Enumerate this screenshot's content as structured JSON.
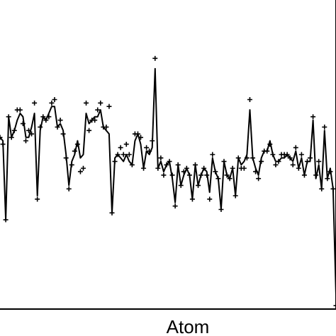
{
  "chart_data": {
    "type": "line",
    "title": "",
    "xlabel": "Atom",
    "ylabel": "",
    "xlim": [
      0,
      117
    ],
    "ylim": [
      -4.7,
      4.3
    ],
    "grid": false,
    "legend": "none",
    "series": [
      {
        "style": "line",
        "color": "#000000",
        "x": [
          0,
          1,
          2,
          3,
          4,
          5,
          6,
          7,
          8,
          9,
          10,
          11,
          12,
          13,
          14,
          15,
          16,
          17,
          18,
          19,
          20,
          21,
          22,
          23,
          24,
          25,
          26,
          27,
          28,
          29,
          30,
          31,
          32,
          33,
          34,
          35,
          36,
          37,
          38,
          39,
          40,
          41,
          42,
          43,
          44,
          45,
          46,
          47,
          48,
          49,
          50,
          51,
          52,
          53,
          54,
          55,
          56,
          57,
          58,
          59,
          60,
          61,
          62,
          63,
          64,
          65,
          66,
          67,
          68,
          69,
          70,
          71,
          72,
          73,
          74,
          75,
          76,
          77,
          78,
          79,
          80,
          81,
          82,
          83,
          84,
          85,
          86,
          87,
          88,
          89,
          90,
          91,
          92,
          93,
          94,
          95,
          96,
          97,
          98,
          99,
          100,
          101,
          102,
          103,
          104,
          105,
          106,
          107,
          108,
          109,
          110,
          111,
          112,
          113,
          114,
          115,
          116,
          117
        ],
        "y": [
          0.3,
          0.2,
          -2.1,
          0.9,
          0.3,
          0.5,
          0.8,
          1.0,
          0.9,
          0.3,
          0.3,
          0.6,
          1.0,
          -1.4,
          0.5,
          0.9,
          0.8,
          1.0,
          1.2,
          1.2,
          0.6,
          0.7,
          0.5,
          -0.2,
          -1.1,
          -0.4,
          -0.2,
          0.2,
          -0.3,
          -0.2,
          1.0,
          0.7,
          0.8,
          0.9,
          0.9,
          1.1,
          0.6,
          0.5,
          0.4,
          -1.9,
          -0.3,
          -0.2,
          -0.3,
          -0.4,
          -0.2,
          -0.4,
          -0.5,
          0.2,
          0.4,
          0.1,
          -0.6,
          -0.1,
          -0.2,
          0.0,
          2.3,
          -0.6,
          -0.4,
          -0.7,
          -0.5,
          -0.4,
          -0.9,
          -1.6,
          -0.5,
          -1.1,
          -0.8,
          -0.6,
          -0.8,
          -1.5,
          -0.5,
          -1.1,
          -0.8,
          -0.6,
          -0.7,
          -1.3,
          -0.3,
          -0.7,
          -0.9,
          -1.8,
          -0.4,
          -0.8,
          -0.9,
          -0.6,
          -1.4,
          -0.3,
          -0.5,
          -0.4,
          -0.2,
          1.1,
          -0.3,
          -0.6,
          -0.8,
          -0.3,
          -0.1,
          -0.1,
          0.2,
          -0.2,
          -0.4,
          -0.4,
          -0.3,
          -0.3,
          -0.2,
          -0.3,
          -0.4,
          -0.1,
          -0.6,
          -0.3,
          -0.8,
          -0.4,
          -0.4,
          0.8,
          -0.9,
          -0.5,
          -1.2,
          0.5,
          -0.9,
          -0.6,
          -1.2,
          -4.3
        ]
      },
      {
        "style": "markers",
        "marker": "+",
        "color": "#000000",
        "x": [
          0,
          1,
          2,
          3,
          4,
          5,
          6,
          7,
          8,
          9,
          10,
          11,
          12,
          13,
          14,
          15,
          16,
          17,
          18,
          19,
          20,
          21,
          22,
          23,
          24,
          25,
          26,
          27,
          28,
          29,
          30,
          31,
          32,
          33,
          34,
          35,
          36,
          37,
          38,
          39,
          40,
          41,
          42,
          43,
          44,
          45,
          46,
          47,
          48,
          49,
          50,
          51,
          52,
          53,
          54,
          55,
          56,
          57,
          58,
          59,
          60,
          61,
          62,
          63,
          64,
          65,
          66,
          67,
          68,
          69,
          70,
          71,
          72,
          73,
          74,
          75,
          76,
          77,
          78,
          79,
          80,
          81,
          82,
          83,
          84,
          85,
          86,
          87,
          88,
          89,
          90,
          91,
          92,
          93,
          94,
          95,
          96,
          97,
          98,
          99,
          100,
          101,
          102,
          103,
          104,
          105,
          106,
          107,
          108,
          109,
          110,
          111,
          112,
          113,
          114,
          115,
          116,
          117
        ],
        "y": [
          0.3,
          0.1,
          -2.1,
          0.9,
          0.3,
          0.5,
          1.1,
          1.1,
          0.7,
          0.2,
          0.5,
          0.4,
          1.3,
          -1.5,
          0.6,
          0.9,
          0.8,
          0.9,
          1.3,
          1.4,
          0.6,
          0.8,
          0.4,
          -0.3,
          -1.2,
          -0.5,
          -0.1,
          0.1,
          -0.7,
          -0.6,
          1.3,
          0.5,
          0.8,
          0.8,
          1.1,
          1.3,
          0.6,
          0.6,
          1.2,
          -1.9,
          -0.4,
          -0.2,
          0.0,
          -0.2,
          0.1,
          -0.2,
          -0.5,
          0.4,
          0.4,
          0.3,
          -0.6,
          0.0,
          -0.1,
          0.2,
          2.6,
          -0.6,
          -0.3,
          -0.8,
          -0.5,
          -0.4,
          -0.8,
          -1.7,
          -0.5,
          -1.1,
          -0.7,
          -0.6,
          -0.8,
          -1.5,
          -0.5,
          -1.1,
          -0.8,
          -0.6,
          -0.8,
          -1.5,
          -0.2,
          -0.7,
          -0.9,
          -1.8,
          -0.4,
          -0.8,
          -0.9,
          -0.6,
          -1.4,
          -0.3,
          -0.6,
          -0.6,
          -0.3,
          1.4,
          -0.3,
          -0.7,
          -0.9,
          -0.4,
          -0.1,
          -0.1,
          0.1,
          -0.2,
          -0.5,
          -0.4,
          -0.2,
          -0.2,
          -0.2,
          -0.3,
          -0.5,
          0.0,
          -0.6,
          -0.2,
          -0.8,
          -0.4,
          -0.3,
          0.9,
          -0.8,
          -0.4,
          -1.2,
          0.6,
          -0.9,
          -0.7,
          -1.2,
          -4.6
        ]
      }
    ]
  }
}
